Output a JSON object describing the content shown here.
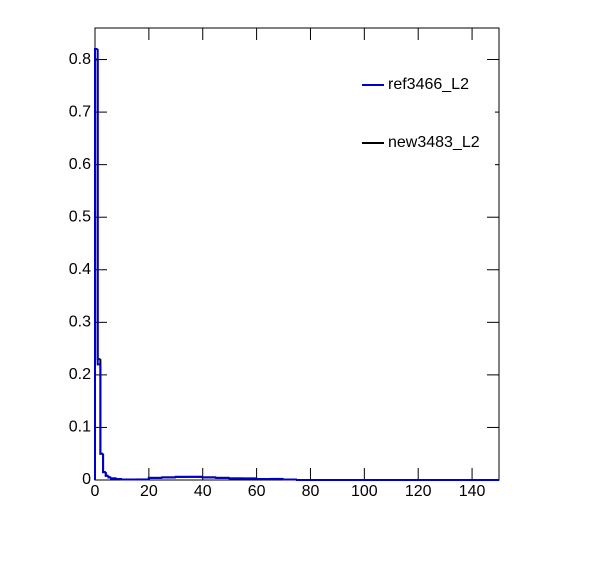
{
  "chart_data": {
    "type": "histogram",
    "bins": [
      0,
      1,
      2,
      3,
      4,
      5,
      6,
      8,
      10,
      15,
      20,
      25,
      30,
      35,
      40,
      45,
      50,
      55,
      60,
      65,
      70,
      75,
      80,
      150
    ],
    "series": [
      {
        "name": "ref3466_L2",
        "color": "#0000cc",
        "values": [
          0.82,
          0.22,
          0.05,
          0.015,
          0.008,
          0.005,
          0.003,
          0.002,
          0.001,
          0.001,
          0.004,
          0.005,
          0.006,
          0.006,
          0.005,
          0.004,
          0.003,
          0.003,
          0.002,
          0.002,
          0.001,
          0.0,
          0.0
        ]
      },
      {
        "name": "new3483_L2",
        "color": "#000000",
        "values": [
          0.8,
          0.23,
          0.05,
          0.015,
          0.008,
          0.005,
          0.003,
          0.002,
          0.001,
          0.001,
          0.004,
          0.005,
          0.006,
          0.006,
          0.005,
          0.004,
          0.003,
          0.003,
          0.002,
          0.002,
          0.001,
          0.0,
          0.0
        ]
      }
    ],
    "xlim": [
      0,
      150
    ],
    "xticks": [
      0,
      20,
      40,
      60,
      80,
      100,
      120,
      140
    ],
    "ylim": [
      0,
      0.86
    ],
    "yticks": [
      0,
      0.1,
      0.2,
      0.3,
      0.4,
      0.5,
      0.6,
      0.7,
      0.8
    ],
    "legend": "top-right"
  }
}
